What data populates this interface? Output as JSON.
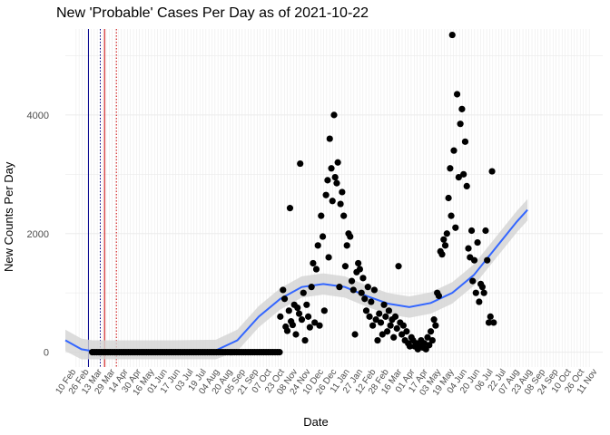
{
  "chart_data": {
    "type": "scatter",
    "title": "New 'Probable' Cases Per Day as of 2021-10-22",
    "xlabel": "Date",
    "ylabel": "New Counts Per Day",
    "ylim": [
      -250,
      5450
    ],
    "y_ticks": [
      0,
      2000,
      4000
    ],
    "grid": true,
    "smooth_line_color": "#3366ff",
    "ribbon_color": "#d3d3d3",
    "point_color": "#000000",
    "reference_lines": [
      {
        "color": "#00008b",
        "style": "solid",
        "x_frac": 0.0
      },
      {
        "color": "#00008b",
        "style": "dotted",
        "x_frac": 0.0
      },
      {
        "color": "#cc0000",
        "style": "solid",
        "x_frac": 0.0
      },
      {
        "color": "#cc0000",
        "style": "dotted",
        "x_frac": 0.0
      }
    ],
    "series": [
      {
        "values_zero_run": {
          "from": 0.05,
          "to": 0.4,
          "value": 0
        }
      },
      {
        "values": [
          [
            0.4,
            600
          ],
          [
            0.405,
            1050
          ],
          [
            0.408,
            900
          ],
          [
            0.41,
            430
          ],
          [
            0.413,
            360
          ],
          [
            0.416,
            700
          ],
          [
            0.418,
            2430
          ],
          [
            0.42,
            520
          ],
          [
            0.423,
            460
          ],
          [
            0.426,
            800
          ],
          [
            0.429,
            300
          ],
          [
            0.432,
            750
          ],
          [
            0.435,
            650
          ],
          [
            0.437,
            3180
          ],
          [
            0.44,
            550
          ],
          [
            0.443,
            1000
          ],
          [
            0.446,
            200
          ],
          [
            0.449,
            800
          ],
          [
            0.452,
            600
          ],
          [
            0.455,
            420
          ],
          [
            0.458,
            1100
          ],
          [
            0.461,
            1500
          ],
          [
            0.464,
            500
          ],
          [
            0.467,
            1400
          ],
          [
            0.47,
            1800
          ],
          [
            0.473,
            450
          ],
          [
            0.476,
            2300
          ],
          [
            0.479,
            1950
          ],
          [
            0.482,
            700
          ],
          [
            0.485,
            2650
          ],
          [
            0.488,
            2900
          ],
          [
            0.49,
            1600
          ],
          [
            0.492,
            3600
          ],
          [
            0.495,
            3100
          ],
          [
            0.497,
            2550
          ],
          [
            0.5,
            4000
          ],
          [
            0.502,
            2950
          ],
          [
            0.505,
            2850
          ],
          [
            0.507,
            3200
          ],
          [
            0.51,
            1100
          ],
          [
            0.512,
            2500
          ],
          [
            0.515,
            2700
          ],
          [
            0.518,
            2300
          ],
          [
            0.521,
            1450
          ],
          [
            0.524,
            1800
          ],
          [
            0.527,
            2000
          ],
          [
            0.53,
            1950
          ],
          [
            0.533,
            1200
          ],
          [
            0.536,
            1050
          ],
          [
            0.539,
            300
          ],
          [
            0.542,
            1350
          ],
          [
            0.545,
            1500
          ],
          [
            0.548,
            1400
          ],
          [
            0.551,
            1000
          ],
          [
            0.554,
            1250
          ],
          [
            0.557,
            900
          ],
          [
            0.56,
            700
          ],
          [
            0.563,
            1100
          ],
          [
            0.566,
            600
          ],
          [
            0.569,
            850
          ],
          [
            0.572,
            450
          ],
          [
            0.575,
            1050
          ],
          [
            0.578,
            550
          ],
          [
            0.581,
            200
          ],
          [
            0.584,
            650
          ],
          [
            0.587,
            500
          ],
          [
            0.59,
            300
          ],
          [
            0.593,
            800
          ],
          [
            0.596,
            600
          ],
          [
            0.599,
            350
          ],
          [
            0.602,
            700
          ],
          [
            0.605,
            450
          ],
          [
            0.608,
            550
          ],
          [
            0.611,
            250
          ],
          [
            0.614,
            600
          ],
          [
            0.617,
            400
          ],
          [
            0.62,
            1450
          ],
          [
            0.623,
            500
          ],
          [
            0.626,
            300
          ],
          [
            0.629,
            450
          ],
          [
            0.632,
            200
          ],
          [
            0.635,
            350
          ],
          [
            0.638,
            150
          ],
          [
            0.641,
            100
          ],
          [
            0.644,
            250
          ],
          [
            0.647,
            200
          ],
          [
            0.65,
            100
          ],
          [
            0.653,
            150
          ],
          [
            0.656,
            50
          ],
          [
            0.659,
            100
          ],
          [
            0.662,
            200
          ],
          [
            0.665,
            80
          ],
          [
            0.668,
            150
          ],
          [
            0.671,
            50
          ],
          [
            0.674,
            250
          ],
          [
            0.677,
            120
          ],
          [
            0.68,
            350
          ],
          [
            0.683,
            200
          ],
          [
            0.686,
            550
          ],
          [
            0.689,
            450
          ],
          [
            0.692,
            1000
          ],
          [
            0.695,
            950
          ],
          [
            0.698,
            1700
          ],
          [
            0.701,
            1650
          ],
          [
            0.704,
            1900
          ],
          [
            0.707,
            1800
          ],
          [
            0.71,
            2000
          ],
          [
            0.713,
            2600
          ],
          [
            0.716,
            3100
          ],
          [
            0.718,
            2300
          ],
          [
            0.72,
            5350
          ],
          [
            0.723,
            3400
          ],
          [
            0.726,
            2100
          ],
          [
            0.729,
            4350
          ],
          [
            0.732,
            2950
          ],
          [
            0.735,
            3850
          ],
          [
            0.738,
            4100
          ],
          [
            0.741,
            3000
          ],
          [
            0.744,
            3550
          ],
          [
            0.747,
            2800
          ],
          [
            0.75,
            1750
          ],
          [
            0.753,
            1600
          ],
          [
            0.756,
            2050
          ],
          [
            0.758,
            1200
          ],
          [
            0.761,
            1550
          ],
          [
            0.764,
            1000
          ],
          [
            0.767,
            1850
          ],
          [
            0.77,
            850
          ],
          [
            0.773,
            1150
          ],
          [
            0.776,
            1100
          ],
          [
            0.779,
            1000
          ],
          [
            0.782,
            2050
          ],
          [
            0.785,
            1550
          ],
          [
            0.788,
            500
          ],
          [
            0.791,
            600
          ],
          [
            0.794,
            3050
          ],
          [
            0.797,
            500
          ]
        ]
      }
    ],
    "smooth_curve": [
      [
        0.0,
        200
      ],
      [
        0.03,
        50
      ],
      [
        0.05,
        20
      ],
      [
        0.1,
        20
      ],
      [
        0.2,
        20
      ],
      [
        0.28,
        30
      ],
      [
        0.32,
        200
      ],
      [
        0.36,
        600
      ],
      [
        0.4,
        900
      ],
      [
        0.44,
        1100
      ],
      [
        0.48,
        1150
      ],
      [
        0.52,
        1100
      ],
      [
        0.56,
        950
      ],
      [
        0.6,
        820
      ],
      [
        0.64,
        760
      ],
      [
        0.68,
        830
      ],
      [
        0.72,
        1000
      ],
      [
        0.76,
        1300
      ],
      [
        0.8,
        1750
      ],
      [
        0.84,
        2200
      ],
      [
        0.86,
        2400
      ]
    ],
    "x_tick_labels": [
      "10 Feb",
      "26 Feb",
      "13 Mar",
      "29 Mar",
      "14 Apr",
      "30 Apr",
      "16 May",
      "01 Jun",
      "17 Jun",
      "03 Jul",
      "19 Jul",
      "04 Aug",
      "20 Aug",
      "05 Sep",
      "21 Sep",
      "07 Oct",
      "23 Oct",
      "08 Nov",
      "24 Nov",
      "10 Dec",
      "26 Dec",
      "11 Jan",
      "27 Jan",
      "12 Feb",
      "28 Feb",
      "16 Mar",
      "01 Apr",
      "17 Apr",
      "03 May",
      "19 May",
      "04 Jun",
      "20 Jun",
      "06 Jul",
      "22 Jul",
      "07 Aug",
      "23 Aug",
      "08 Sep",
      "24 Sep",
      "10 Oct",
      "26 Oct",
      "11 Nov"
    ]
  }
}
